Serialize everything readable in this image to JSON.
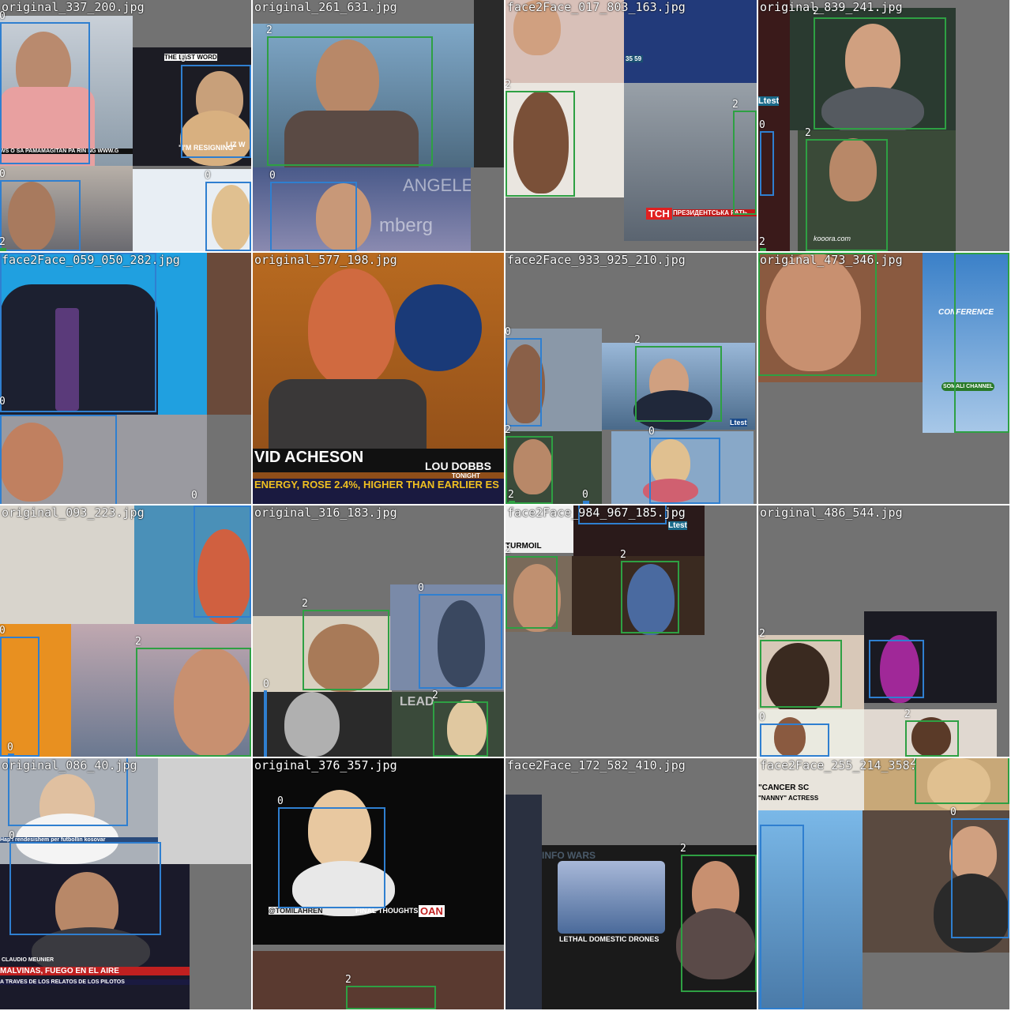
{
  "grid": {
    "tiles": [
      {
        "title": "original_337_200.jpg",
        "captions": [
          "WS O SA PAMAMAGITAN PA RIN NG WWW.G",
          "\"I'M RESIGNING\"",
          "LIZ W",
          "THE LAST WORD"
        ],
        "labels": [
          "0",
          "0",
          "0",
          "0",
          "2"
        ]
      },
      {
        "title": "original_261_631.jpg",
        "captions": [
          "ANGELES",
          "mberg"
        ],
        "labels": [
          "2",
          "0"
        ]
      },
      {
        "title": "face2Face_017_803_163.jpg",
        "captions": [
          "TCH",
          "ПРЕЗИДЕНТСЬКА РАТЬ",
          "35 59"
        ],
        "labels": [
          "2",
          "2"
        ]
      },
      {
        "title": "original_839_241.jpg",
        "captions": [
          "Ltest",
          "kooora.com"
        ],
        "labels": [
          "2",
          "2",
          "0",
          "2"
        ]
      },
      {
        "title": "face2Face_059_050_282.jpg",
        "captions": [],
        "labels": [
          "0",
          "0"
        ]
      },
      {
        "title": "original_577_198.jpg",
        "captions": [
          "VID ACHESON",
          "LOU DOBBS",
          "TONIGHT",
          "ENERGY, ROSE 2.4%, HIGHER THAN EARLIER ES"
        ],
        "labels": []
      },
      {
        "title": "face2Face_933_925_210.jpg",
        "captions": [
          "Ltest"
        ],
        "labels": [
          "0",
          "2",
          "2",
          "0",
          "2",
          "0"
        ]
      },
      {
        "title": "original_473_346.jpg",
        "captions": [
          "SOMALI CHANNEL",
          "CONFERENCE"
        ],
        "labels": [
          "2"
        ]
      },
      {
        "title": "original_093_223.jpg",
        "captions": [],
        "labels": [
          "0",
          "2",
          "0"
        ]
      },
      {
        "title": "original_316_183.jpg",
        "captions": [
          "LEAD"
        ],
        "labels": [
          "2",
          "0",
          "0",
          "2"
        ]
      },
      {
        "title": "face2Face_984_967_185.jpg",
        "captions": [
          "TURMOIL",
          "Ltest"
        ],
        "labels": [
          "2",
          "2"
        ]
      },
      {
        "title": "original_486_544.jpg",
        "captions": [],
        "labels": [
          "2",
          "0",
          "2"
        ]
      },
      {
        "title": "original_086_40.jpg",
        "captions": [
          "Hap i rendesishem per futbollin kosovar",
          "CLAUDIO MEUNIER",
          "MALVINAS, FUEGO EN EL AIRE",
          "A TRAVES DE LOS RELATOS DE LOS PILOTOS"
        ],
        "labels": [
          "0"
        ]
      },
      {
        "title": "original_376_357.jpg",
        "captions": [
          "FINAL THOUGHTS",
          "@TOMILAHREN",
          "OAN"
        ],
        "labels": [
          "0",
          "2"
        ]
      },
      {
        "title": "face2Face_172_582_410.jpg",
        "captions": [
          "LETHAL DOMESTIC DRONES",
          "INFO WARS"
        ],
        "labels": [
          "2"
        ]
      },
      {
        "title": "face2Face_255_214_358.",
        "captions": [
          "\"CANCER SC",
          "\"NANNY\" ACTRESS"
        ],
        "labels": [
          "0",
          "2"
        ]
      }
    ]
  },
  "colors": {
    "class_0": "#2f7fd0",
    "class_2": "#2ea043",
    "background": "#6e6e6e"
  }
}
